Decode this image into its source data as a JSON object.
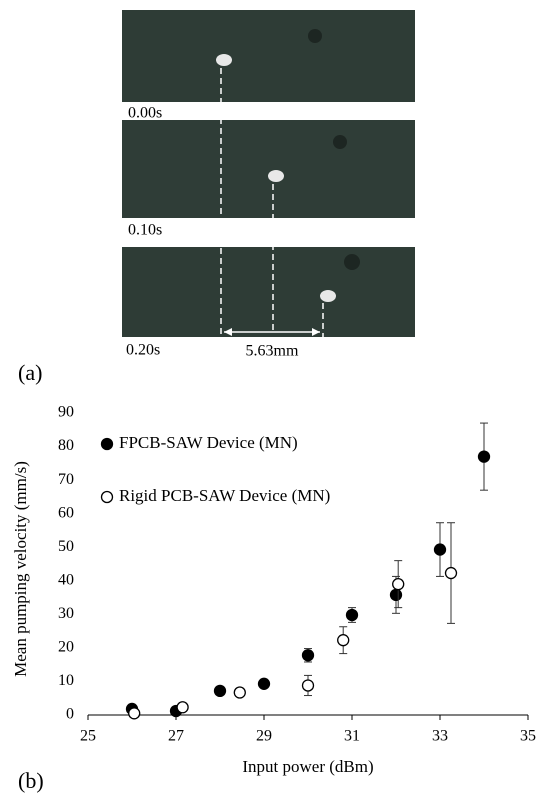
{
  "panel_a": {
    "label": "(a)",
    "frames": [
      "0.00s",
      "0.10s",
      "0.20s"
    ],
    "scale_label": "5.63mm"
  },
  "panel_b_label": "(b)",
  "chart_data": {
    "type": "scatter",
    "xlabel": "Input power (dBm)",
    "ylabel": "Mean pumping velocity (mm/s)",
    "xlim": [
      25,
      35
    ],
    "xticks": [
      25,
      27,
      29,
      31,
      33,
      35
    ],
    "ylim": [
      0,
      90
    ],
    "yticks": [
      0,
      10,
      20,
      30,
      40,
      50,
      60,
      70,
      80,
      90
    ],
    "grid": false,
    "legend": "upper left",
    "series": [
      {
        "name": "FPCB-SAW Device (MN)",
        "color": "#000000",
        "marker": "filled",
        "x": [
          26,
          27,
          28,
          29,
          30,
          31,
          32,
          33,
          34
        ],
        "values": [
          1.8,
          1.2,
          7.2,
          9.3,
          17.8,
          29.8,
          35.8,
          49.3,
          77
        ],
        "errors": [
          0.5,
          0.5,
          0.5,
          0.5,
          2,
          2.2,
          5.5,
          8,
          10
        ]
      },
      {
        "name": "Rigid PCB-SAW Device (MN)",
        "color": "#000000",
        "marker": "open",
        "x": [
          26.05,
          27.15,
          28.45,
          30,
          30.8,
          32.05,
          33.25
        ],
        "values": [
          0.5,
          2.3,
          6.7,
          8.8,
          22.3,
          39,
          42.3
        ],
        "errors": [
          0.5,
          0.8,
          1,
          3,
          4,
          7,
          15
        ]
      }
    ]
  }
}
